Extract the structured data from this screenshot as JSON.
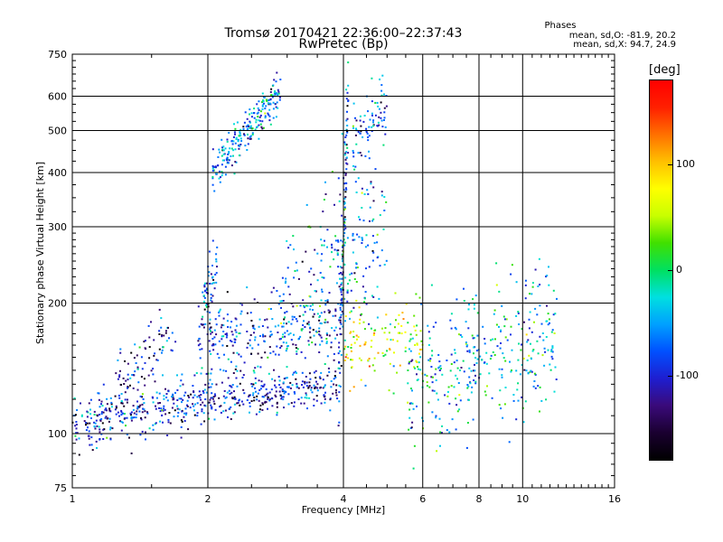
{
  "title": "Tromsø 20170421 22:36:00–22:37:43",
  "subtitle": "RwPretec (Bp)",
  "phases": {
    "heading": "Phases",
    "line_o": "mean, sd,O: -81.9, 20.2",
    "line_x": "mean, sd,X:  94.7, 24.9"
  },
  "colorbar": {
    "unit_label": "[deg]",
    "range": [
      -180,
      180
    ],
    "ticks": [
      100,
      0,
      -100
    ],
    "tick_labels": [
      "100",
      "0",
      "-100"
    ],
    "colors": [
      "#000000",
      "#1a0030",
      "#3a0a7a",
      "#1e1ed0",
      "#0050ff",
      "#00a0ff",
      "#00e0e0",
      "#00e060",
      "#40e000",
      "#c8ff00",
      "#ffff00",
      "#ffc000",
      "#ff7000",
      "#ff2000",
      "#ff0000"
    ]
  },
  "chart_data": {
    "type": "scatter",
    "title": "Tromsø 20170421 22:36:00–22:37:43",
    "subtitle": "RwPretec (Bp)",
    "xlabel": "Frequency [MHz]",
    "ylabel": "Stationary phase Virtual Height [km]",
    "x_scale": "log",
    "y_scale": "log",
    "xlim": [
      1,
      16
    ],
    "ylim": [
      75,
      750
    ],
    "x_ticks": [
      1,
      2,
      4,
      6,
      8,
      10,
      16
    ],
    "x_tick_labels": [
      "1",
      "2",
      "4",
      "6",
      "8",
      "10",
      "16"
    ],
    "y_ticks": [
      75,
      100,
      200,
      300,
      400,
      500,
      600,
      750
    ],
    "y_tick_labels": [
      "75",
      "100",
      "200",
      "300",
      "400",
      "500",
      "600",
      "750"
    ],
    "grid": true,
    "color_variable": "phase (deg)",
    "clusters": [
      {
        "x_range": [
          1.0,
          2.05
        ],
        "y_center_start": 105,
        "y_center_end": 120,
        "spread": 0.07,
        "phase": -95,
        "count": 320
      },
      {
        "x_range": [
          1.25,
          1.7
        ],
        "y_center_start": 130,
        "y_center_end": 175,
        "spread": 0.08,
        "phase": -110,
        "count": 90
      },
      {
        "x_range": [
          2.0,
          3.9
        ],
        "y_center_start": 118,
        "y_center_end": 130,
        "spread": 0.05,
        "phase": -105,
        "count": 260
      },
      {
        "x_range": [
          2.0,
          3.9
        ],
        "y_center_start": 165,
        "y_center_end": 180,
        "spread": 0.1,
        "phase": -85,
        "count": 260
      },
      {
        "x_range": [
          1.9,
          2.1
        ],
        "y_center_start": 160,
        "y_center_end": 260,
        "spread": 0.1,
        "phase": -90,
        "count": 70
      },
      {
        "x_range": [
          2.05,
          2.9
        ],
        "y_center_start": 400,
        "y_center_end": 620,
        "spread": 0.05,
        "phase": -55,
        "count": 230
      },
      {
        "x_range": [
          2.9,
          5.0
        ],
        "y_center_start": 200,
        "y_center_end": 300,
        "spread": 0.22,
        "phase": -60,
        "count": 230
      },
      {
        "x_range": [
          3.9,
          4.1
        ],
        "y_center_start": 130,
        "y_center_end": 600,
        "spread": 0.15,
        "phase": -80,
        "count": 130
      },
      {
        "x_range": [
          4.2,
          5.0
        ],
        "y_center_start": 470,
        "y_center_end": 580,
        "spread": 0.08,
        "phase": -70,
        "count": 80
      },
      {
        "x_range": [
          4.0,
          6.0
        ],
        "y_center_start": 160,
        "y_center_end": 165,
        "spread": 0.1,
        "phase": 60,
        "count": 120
      },
      {
        "x_range": [
          5.5,
          12.0
        ],
        "y_center_start": 130,
        "y_center_end": 170,
        "spread": 0.18,
        "phase": -40,
        "count": 360
      }
    ]
  }
}
